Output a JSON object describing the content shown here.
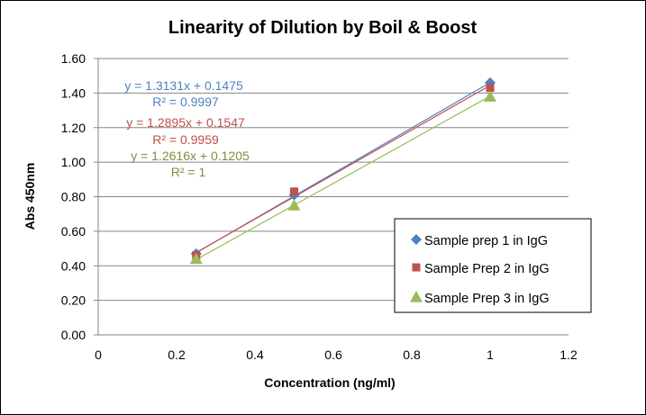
{
  "chart_data": {
    "type": "scatter",
    "title": "Linearity of Dilution by Boil & Boost",
    "xlabel": "Concentration (ng/ml)",
    "ylabel": "Abs 450nm",
    "xlim": [
      0,
      1.2
    ],
    "ylim": [
      0,
      1.6
    ],
    "xticks": [
      "0",
      "0.2",
      "0.4",
      "0.6",
      "0.8",
      "1",
      "1.2"
    ],
    "yticks": [
      "0.00",
      "0.20",
      "0.40",
      "0.60",
      "0.80",
      "1.00",
      "1.20",
      "1.40",
      "1.60"
    ],
    "grid": "horizontal",
    "legend_position": "bottom-right",
    "series": [
      {
        "name": "Sample prep 1 in IgG",
        "color": "#4F81BD",
        "marker": "diamond",
        "x": [
          0.25,
          0.5,
          1
        ],
        "y": [
          0.47,
          0.81,
          1.46
        ],
        "trendline": {
          "slope": 1.3131,
          "intercept": 0.1475,
          "equation": "y = 1.3131x + 0.1475",
          "r2": "R² = 0.9997"
        }
      },
      {
        "name": "Sample Prep 2 in IgG",
        "color": "#C0504D",
        "marker": "square",
        "x": [
          0.25,
          0.5,
          1
        ],
        "y": [
          0.46,
          0.83,
          1.43
        ],
        "trendline": {
          "slope": 1.2895,
          "intercept": 0.1547,
          "equation": "y = 1.2895x + 0.1547",
          "r2": "R² = 0.9959"
        }
      },
      {
        "name": "Sample Prep 3 in IgG",
        "color": "#9BBB59",
        "marker": "triangle",
        "x": [
          0.25,
          0.5,
          1
        ],
        "y": [
          0.44,
          0.75,
          1.38
        ],
        "trendline": {
          "slope": 1.2616,
          "intercept": 0.1205,
          "equation": "y = 1.2616x + 0.1205",
          "r2": "R² = 1"
        }
      }
    ]
  }
}
